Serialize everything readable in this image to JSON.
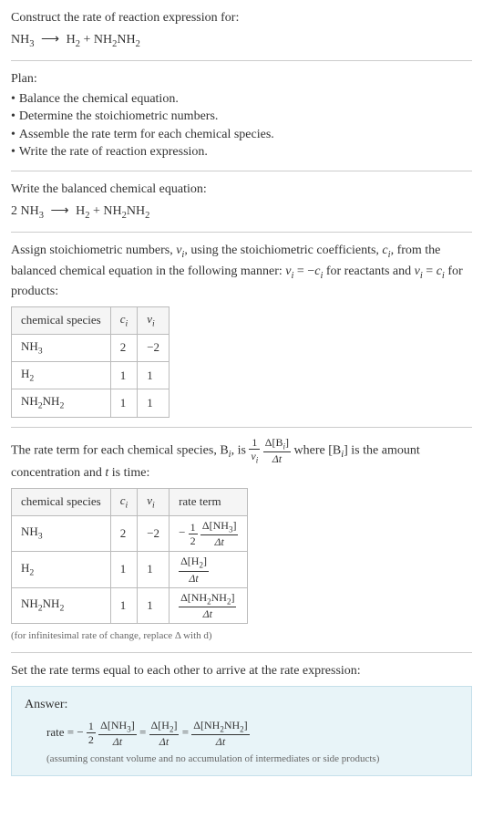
{
  "header": {
    "construct_label": "Construct the rate of reaction expression for:",
    "equation_reactant": "NH",
    "equation_reactant_sub": "3",
    "arrow": "⟶",
    "prod1": "H",
    "prod1_sub": "2",
    "plus": " + ",
    "prod2a": "NH",
    "prod2a_sub": "2",
    "prod2b": "NH",
    "prod2b_sub": "2"
  },
  "plan": {
    "title": "Plan:",
    "items": [
      "Balance the chemical equation.",
      "Determine the stoichiometric numbers.",
      "Assemble the rate term for each chemical species.",
      "Write the rate of reaction expression."
    ],
    "bullet": "•"
  },
  "balanced": {
    "label": "Write the balanced chemical equation:",
    "coef": "2 ",
    "reactant": "NH",
    "reactant_sub": "3",
    "arrow": "⟶",
    "prod1": "H",
    "prod1_sub": "2",
    "plus": " + ",
    "prod2a": "NH",
    "prod2a_sub": "2",
    "prod2b": "NH",
    "prod2b_sub": "2"
  },
  "stoich": {
    "intro_a": "Assign stoichiometric numbers, ",
    "nu": "ν",
    "nu_sub": "i",
    "intro_b": ", using the stoichiometric coefficients, ",
    "c": "c",
    "c_sub": "i",
    "intro_c": ", from the balanced chemical equation in the following manner: ",
    "eq1_lhs": "ν",
    "eq1_lhs_sub": "i",
    "eq1_eq": " = −",
    "eq1_rhs": "c",
    "eq1_rhs_sub": "i",
    "intro_d": " for reactants and ",
    "eq2_lhs": "ν",
    "eq2_lhs_sub": "i",
    "eq2_eq": " = ",
    "eq2_rhs": "c",
    "eq2_rhs_sub": "i",
    "intro_e": " for products:",
    "table": {
      "headers": [
        "chemical species",
        "cᵢ",
        "νᵢ"
      ],
      "header_c": "c",
      "header_c_sub": "i",
      "header_nu": "ν",
      "header_nu_sub": "i",
      "rows": [
        {
          "species": "NH",
          "species_sub": "3",
          "c": "2",
          "nu": "−2"
        },
        {
          "species": "H",
          "species_sub": "2",
          "c": "1",
          "nu": "1"
        },
        {
          "species_a": "NH",
          "species_a_sub": "2",
          "species_b": "NH",
          "species_b_sub": "2",
          "c": "1",
          "nu": "1"
        }
      ]
    }
  },
  "rate": {
    "intro_a": "The rate term for each chemical species, B",
    "intro_a_sub": "i",
    "intro_b": ", is ",
    "frac1_num": "1",
    "frac1_den_a": "ν",
    "frac1_den_sub": "i",
    "frac2_num_a": "Δ[B",
    "frac2_num_sub": "i",
    "frac2_num_b": "]",
    "frac2_den": "Δt",
    "intro_c": " where [B",
    "intro_c_sub": "i",
    "intro_d": "] is the amount concentration and ",
    "t": "t",
    "intro_e": " is time:",
    "table": {
      "header_species": "chemical species",
      "header_c": "c",
      "header_c_sub": "i",
      "header_nu": "ν",
      "header_nu_sub": "i",
      "header_rate": "rate term",
      "rows": [
        {
          "species": "NH",
          "species_sub": "3",
          "c": "2",
          "nu": "−2",
          "prefix": "−",
          "f1_num": "1",
          "f1_den": "2",
          "f2_num": "Δ[NH3]",
          "f2_num_a": "Δ[NH",
          "f2_num_sub": "3",
          "f2_num_b": "]",
          "f2_den": "Δt"
        },
        {
          "species": "H",
          "species_sub": "2",
          "c": "1",
          "nu": "1",
          "prefix": "",
          "f2_num_a": "Δ[H",
          "f2_num_sub": "2",
          "f2_num_b": "]",
          "f2_den": "Δt"
        },
        {
          "species_a": "NH",
          "species_a_sub": "2",
          "species_b": "NH",
          "species_b_sub": "2",
          "c": "1",
          "nu": "1",
          "prefix": "",
          "f2_num_a": "Δ[NH",
          "f2_num_a_sub": "2",
          "f2_num_b": "NH",
          "f2_num_b_sub": "2",
          "f2_num_c": "]",
          "f2_den": "Δt"
        }
      ]
    },
    "note": "(for infinitesimal rate of change, replace Δ with d)"
  },
  "final": {
    "intro": "Set the rate terms equal to each other to arrive at the rate expression:",
    "answer_label": "Answer:",
    "rate_word": "rate = −",
    "f1_num": "1",
    "f1_den": "2",
    "nh3_num_a": "Δ[NH",
    "nh3_num_sub": "3",
    "nh3_num_b": "]",
    "nh3_den": "Δt",
    "eq": " = ",
    "h2_num_a": "Δ[H",
    "h2_num_sub": "2",
    "h2_num_b": "]",
    "h2_den": "Δt",
    "nh2_num_a": "Δ[NH",
    "nh2_num_a_sub": "2",
    "nh2_num_b": "NH",
    "nh2_num_b_sub": "2",
    "nh2_num_c": "]",
    "nh2_den": "Δt",
    "note": "(assuming constant volume and no accumulation of intermediates or side products)"
  }
}
